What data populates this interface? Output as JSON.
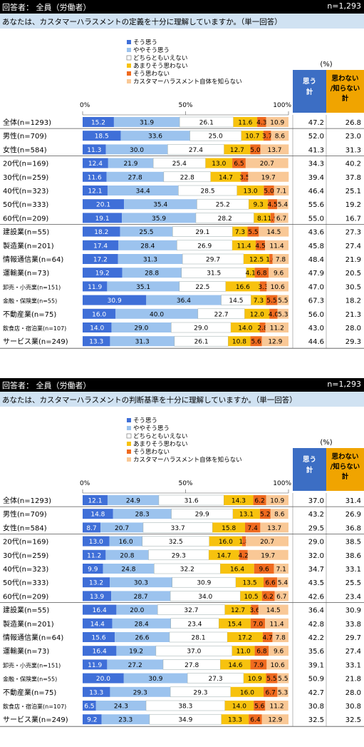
{
  "panels": [
    {
      "header_left": "回答者： 全員（労働者）",
      "header_right": "n=1,293",
      "question": "あなたは、カスタマーハラスメントの定義を十分に理解していますか。（単一回答）"
    },
    {
      "header_left": "回答者： 全員（労働者）",
      "header_right": "n=1,293",
      "question": "あなたは、カスタマーハラスメントの判断基準を十分に理解していますか。（単一回答）"
    }
  ],
  "colors": {
    "header_bg": "#000000",
    "question_bg": "#d0e2f2",
    "segments": [
      "#3f6fd8",
      "#9cc3ee",
      "#ffffff",
      "#f7c20e",
      "#ef6a1f",
      "#f9c896"
    ],
    "agree_header_bg": "#3c6ec4",
    "disagree_header_bg": "#f0a400"
  },
  "chart_data": [
    {
      "type": "bar",
      "orientation": "horizontal",
      "stacked": true,
      "xlim": [
        0,
        100
      ],
      "tick_labels": [
        "0%",
        "50%",
        "100%"
      ],
      "legend": [
        "そう思う",
        "ややそう思う",
        "どちらともいえない",
        "あまりそう思わない",
        "そう思わない",
        "カスタマーハラスメント自体を知らない"
      ],
      "unit_label": "(%)",
      "col_headers": [
        "思う\n計",
        "思わない\n/知らない\n計"
      ],
      "categories": [
        "全体(n=1293)",
        "男性(n=709)",
        "女性(n=584)",
        "20代(n=169)",
        "30代(n=259)",
        "40代(n=323)",
        "50代(n=333)",
        "60代(n=209)",
        "建設業(n=55)",
        "製造業(n=201)",
        "情報通信業(n=64)",
        "運輸業(n=73)",
        "卸売・小売業(n=151)",
        "金融・保険業(n=55)",
        "不動産業(n=75)",
        "飲食店・宿泊業(n=107)",
        "サービス業(n=249)"
      ],
      "small_label_rows": [
        12,
        13,
        15
      ],
      "groups": [
        [
          0
        ],
        [
          1,
          2
        ],
        [
          3,
          4,
          5,
          6,
          7
        ],
        [
          8,
          9,
          10,
          11,
          12,
          13,
          14,
          15,
          16
        ]
      ],
      "series": [
        {
          "name": "そう思う",
          "values": [
            15.2,
            18.5,
            11.3,
            12.4,
            11.6,
            12.1,
            20.1,
            19.1,
            18.2,
            17.4,
            17.2,
            19.2,
            11.9,
            30.9,
            16.0,
            14.0,
            13.3
          ]
        },
        {
          "name": "ややそう思う",
          "values": [
            31.9,
            33.6,
            30.0,
            21.9,
            27.8,
            34.4,
            35.4,
            35.9,
            25.5,
            28.4,
            31.3,
            28.8,
            35.1,
            36.4,
            40.0,
            29.0,
            31.3
          ]
        },
        {
          "name": "どちらともいえない",
          "values": [
            26.1,
            25.0,
            27.4,
            25.4,
            22.8,
            28.5,
            25.2,
            28.2,
            29.1,
            26.9,
            29.7,
            31.5,
            22.5,
            14.5,
            22.7,
            29.0,
            26.1
          ]
        },
        {
          "name": "あまりそう思わない",
          "values": [
            11.6,
            10.7,
            12.7,
            13.0,
            14.7,
            13.0,
            9.3,
            8.1,
            7.3,
            11.4,
            12.5,
            4.1,
            16.6,
            7.3,
            12.0,
            14.0,
            10.8
          ]
        },
        {
          "name": "そう思わない",
          "values": [
            4.3,
            3.7,
            5.0,
            6.5,
            3.5,
            5.0,
            4.5,
            1.9,
            5.5,
            4.5,
            1.6,
            6.8,
            3.3,
            5.5,
            4.0,
            2.8,
            5.6
          ]
        },
        {
          "name": "カスタマーハラスメント自体を知らない",
          "values": [
            10.9,
            8.6,
            13.7,
            20.7,
            19.7,
            7.1,
            5.4,
            6.7,
            14.5,
            11.4,
            7.8,
            9.6,
            10.6,
            5.5,
            5.3,
            11.2,
            12.9
          ]
        }
      ],
      "agree_total": [
        47.2,
        52.0,
        41.3,
        34.3,
        39.4,
        46.4,
        55.6,
        55.0,
        43.6,
        45.8,
        48.4,
        47.9,
        47.0,
        67.3,
        56.0,
        43.0,
        44.6
      ],
      "disagree_total": [
        26.8,
        23.0,
        31.3,
        40.2,
        37.8,
        25.1,
        19.2,
        16.7,
        27.3,
        27.4,
        21.9,
        20.5,
        30.5,
        18.2,
        21.3,
        28.0,
        29.3
      ],
      "segment_labels": [
        [
          "15.2",
          "31.9",
          "26.1",
          "11.6",
          "4.3",
          "10.9"
        ],
        [
          "18.5",
          "33.6",
          "25.0",
          "10.7",
          "3.7",
          "8.6"
        ],
        [
          "11.3",
          "30.0",
          "27.4",
          "12.7",
          "5.0",
          "13.7"
        ],
        [
          "12.4",
          "21.9",
          "25.4",
          "13.0",
          "6.5",
          "20.7"
        ],
        [
          "11.6",
          "27.8",
          "22.8",
          "14.7",
          "3.5",
          "19.7"
        ],
        [
          "12.1",
          "34.4",
          "28.5",
          "13.0",
          "5.0",
          "7.1"
        ],
        [
          "20.1",
          "35.4",
          "25.2",
          "9.3",
          "4.5",
          "5.4"
        ],
        [
          "19.1",
          "35.9",
          "28.2",
          "8.1",
          "1.9",
          "6.7"
        ],
        [
          "18.2",
          "25.5",
          "29.1",
          "7.3",
          "5.5",
          "14.5"
        ],
        [
          "17.4",
          "28.4",
          "26.9",
          "11.4",
          "4.5",
          "11.4"
        ],
        [
          "17.2",
          "31.3",
          "29.7",
          "12.5",
          "1.6",
          "7.8"
        ],
        [
          "19.2",
          "28.8",
          "31.5",
          "4.1",
          "6.8",
          "9.6"
        ],
        [
          "11.9",
          "35.1",
          "22.5",
          "16.6",
          "3.3",
          "10.6"
        ],
        [
          "30.9",
          "36.4",
          "14.5",
          "7.3",
          "5.5",
          "5.5"
        ],
        [
          "16.0",
          "40.0",
          "22.7",
          "12.0",
          "4.0",
          "5.3"
        ],
        [
          "14.0",
          "29.0",
          "29.0",
          "14.0",
          "2.8",
          "11.2"
        ],
        [
          "13.3",
          "31.3",
          "26.1",
          "10.8",
          "5.6",
          "12.9"
        ]
      ]
    },
    {
      "type": "bar",
      "orientation": "horizontal",
      "stacked": true,
      "xlim": [
        0,
        100
      ],
      "tick_labels": [
        "0%",
        "50%",
        "100%"
      ],
      "legend": [
        "そう思う",
        "ややそう思う",
        "どちらともいえない",
        "あまりそう思わない",
        "そう思わない",
        "カスタマーハラスメント自体を知らない"
      ],
      "unit_label": "(%)",
      "col_headers": [
        "思う\n計",
        "思わない\n/知らない\n計"
      ],
      "categories": [
        "全体(n=1293)",
        "男性(n=709)",
        "女性(n=584)",
        "20代(n=169)",
        "30代(n=259)",
        "40代(n=323)",
        "50代(n=333)",
        "60代(n=209)",
        "建設業(n=55)",
        "製造業(n=201)",
        "情報通信業(n=64)",
        "運輸業(n=73)",
        "卸売・小売業(n=151)",
        "金融・保険業(n=55)",
        "不動産業(n=75)",
        "飲食店・宿泊業(n=107)",
        "サービス業(n=249)"
      ],
      "small_label_rows": [
        12,
        13,
        15
      ],
      "groups": [
        [
          0
        ],
        [
          1,
          2
        ],
        [
          3,
          4,
          5,
          6,
          7
        ],
        [
          8,
          9,
          10,
          11,
          12,
          13,
          14,
          15,
          16
        ]
      ],
      "series": [
        {
          "name": "そう思う",
          "values": [
            12.1,
            14.8,
            8.7,
            13.0,
            11.2,
            9.9,
            13.2,
            13.9,
            16.4,
            14.4,
            15.6,
            16.4,
            11.9,
            20.0,
            13.3,
            6.5,
            9.2
          ]
        },
        {
          "name": "ややそう思う",
          "values": [
            24.9,
            28.3,
            20.7,
            16.0,
            20.8,
            24.8,
            30.3,
            28.7,
            20.0,
            28.4,
            26.6,
            19.2,
            27.2,
            30.9,
            29.3,
            24.3,
            23.3
          ]
        },
        {
          "name": "どちらともいえない",
          "values": [
            31.6,
            29.9,
            33.7,
            32.5,
            29.3,
            32.2,
            30.9,
            34.0,
            32.7,
            23.4,
            28.1,
            37.0,
            27.8,
            27.3,
            29.3,
            38.3,
            34.9
          ]
        },
        {
          "name": "あまりそう思わない",
          "values": [
            14.3,
            13.1,
            15.8,
            16.0,
            14.7,
            16.4,
            13.5,
            10.5,
            12.7,
            15.4,
            17.2,
            11.0,
            14.6,
            10.9,
            16.0,
            14.0,
            13.3
          ]
        },
        {
          "name": "そう思わない",
          "values": [
            6.2,
            5.2,
            7.4,
            1.8,
            4.2,
            9.6,
            6.6,
            6.2,
            3.6,
            7.0,
            4.7,
            6.8,
            7.9,
            5.5,
            6.7,
            5.6,
            6.4
          ]
        },
        {
          "name": "カスタマーハラスメント自体を知らない",
          "values": [
            10.9,
            8.6,
            13.7,
            20.7,
            19.7,
            7.1,
            5.4,
            6.7,
            14.5,
            11.4,
            7.8,
            9.6,
            10.6,
            5.5,
            5.3,
            11.2,
            12.9
          ]
        }
      ],
      "agree_total": [
        37.0,
        43.2,
        29.5,
        29.0,
        32.0,
        34.7,
        43.5,
        42.6,
        36.4,
        42.8,
        42.2,
        35.6,
        39.1,
        50.9,
        42.7,
        30.8,
        32.5
      ],
      "disagree_total": [
        31.4,
        26.9,
        36.8,
        38.5,
        38.6,
        33.1,
        25.5,
        23.4,
        30.9,
        33.8,
        29.7,
        27.4,
        33.1,
        21.8,
        28.0,
        30.8,
        32.5
      ],
      "segment_labels": [
        [
          "12.1",
          "24.9",
          "31.6",
          "14.3",
          "6.2",
          "10.9"
        ],
        [
          "14.8",
          "28.3",
          "29.9",
          "13.1",
          "5.2",
          "8.6"
        ],
        [
          "8.7",
          "20.7",
          "33.7",
          "15.8",
          "7.4",
          "13.7"
        ],
        [
          "13.0",
          "16.0",
          "32.5",
          "16.0",
          "1.8",
          "20.7"
        ],
        [
          "11.2",
          "20.8",
          "29.3",
          "14.7",
          "4.2",
          "19.7"
        ],
        [
          "9.9",
          "24.8",
          "32.2",
          "16.4",
          "9.6",
          "7.1"
        ],
        [
          "13.2",
          "30.3",
          "30.9",
          "13.5",
          "6.6",
          "5.4"
        ],
        [
          "13.9",
          "28.7",
          "34.0",
          "10.5",
          "6.2",
          "6.7"
        ],
        [
          "16.4",
          "20.0",
          "32.7",
          "12.7",
          "3.6",
          "14.5"
        ],
        [
          "14.4",
          "28.4",
          "23.4",
          "15.4",
          "7.0",
          "11.4"
        ],
        [
          "15.6",
          "26.6",
          "28.1",
          "17.2",
          "4.7",
          "7.8"
        ],
        [
          "16.4",
          "19.2",
          "37.0",
          "11.0",
          "6.8",
          "9.6"
        ],
        [
          "11.9",
          "27.2",
          "27.8",
          "14.6",
          "7.9",
          "10.6"
        ],
        [
          "20.0",
          "30.9",
          "27.3",
          "10.9",
          "5.5",
          "5.5"
        ],
        [
          "13.3",
          "29.3",
          "29.3",
          "16.0",
          "6.7",
          "5.3"
        ],
        [
          "6.5",
          "24.3",
          "38.3",
          "14.0",
          "5.6",
          "11.2"
        ],
        [
          "9.2",
          "23.3",
          "34.9",
          "13.3",
          "6.4",
          "12.9"
        ]
      ]
    }
  ]
}
